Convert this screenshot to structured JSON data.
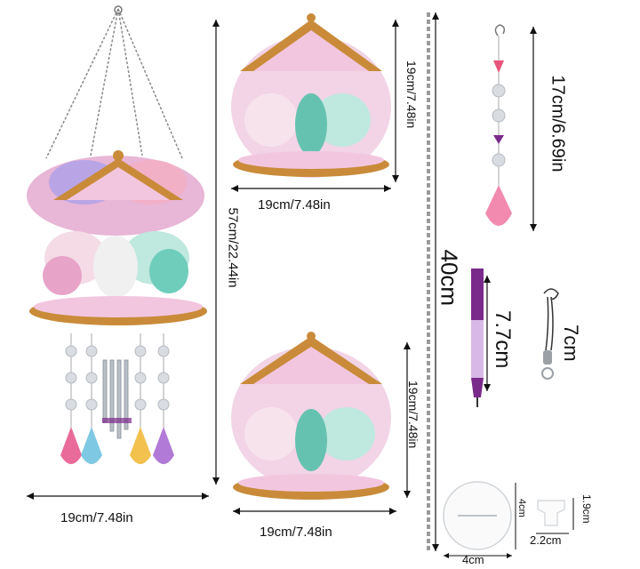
{
  "dimensions": {
    "full_width": "19cm/7.48in",
    "full_height": "57cm/22.44in",
    "top_panel_height": "19cm/7.48in",
    "top_panel_width": "19cm/7.48in",
    "bottom_panel_height": "19cm/7.48in",
    "bottom_panel_width": "19cm/7.48in",
    "chain_length": "40cm",
    "pendant_length": "17cm/6.69in",
    "pen_length": "7.7cm",
    "cord_length": "7cm",
    "disc_diameter": "4cm",
    "disc_height": "4cm",
    "clip_width": "2.2cm",
    "clip_height": "1.9cm"
  },
  "colors": {
    "gold": "#c98b3a",
    "pink": "#e7a3c8",
    "teal": "#5fc6b8",
    "purple": "#7a2a8a",
    "crystal": "#d9dde2"
  }
}
